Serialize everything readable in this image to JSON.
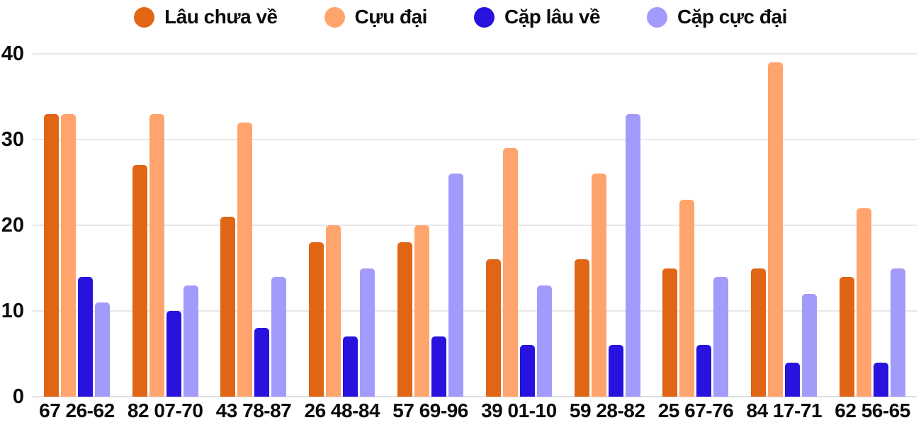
{
  "chart_data": {
    "type": "bar",
    "title": "",
    "legend_position": "top",
    "grid": true,
    "ylim": [
      0,
      40
    ],
    "yticks": [
      0,
      10,
      20,
      30,
      40
    ],
    "categories": [
      "67 26-62",
      "82 07-70",
      "43 78-87",
      "26 48-84",
      "57 69-96",
      "39 01-10",
      "59 28-82",
      "25 67-76",
      "84 17-71",
      "62 56-65"
    ],
    "series": [
      {
        "name": "Lâu chưa về",
        "color": "#e06514",
        "values": [
          33,
          27,
          21,
          18,
          18,
          16,
          16,
          15,
          15,
          14
        ]
      },
      {
        "name": "Cựu đại",
        "color": "#ffa46c",
        "values": [
          33,
          33,
          32,
          20,
          20,
          29,
          26,
          23,
          39,
          22
        ]
      },
      {
        "name": "Cặp lâu về",
        "color": "#2712de",
        "values": [
          14,
          10,
          8,
          7,
          7,
          6,
          6,
          6,
          4,
          4
        ]
      },
      {
        "name": "Cặp cực đại",
        "color": "#a29bfb",
        "values": [
          11,
          13,
          14,
          15,
          26,
          13,
          33,
          14,
          12,
          15
        ]
      }
    ]
  },
  "styles": {
    "background": "#ffffff",
    "text_color": "#0b0b0b",
    "gridline_color": "#e8e8e8",
    "baseline_color": "#e0e0e0"
  }
}
